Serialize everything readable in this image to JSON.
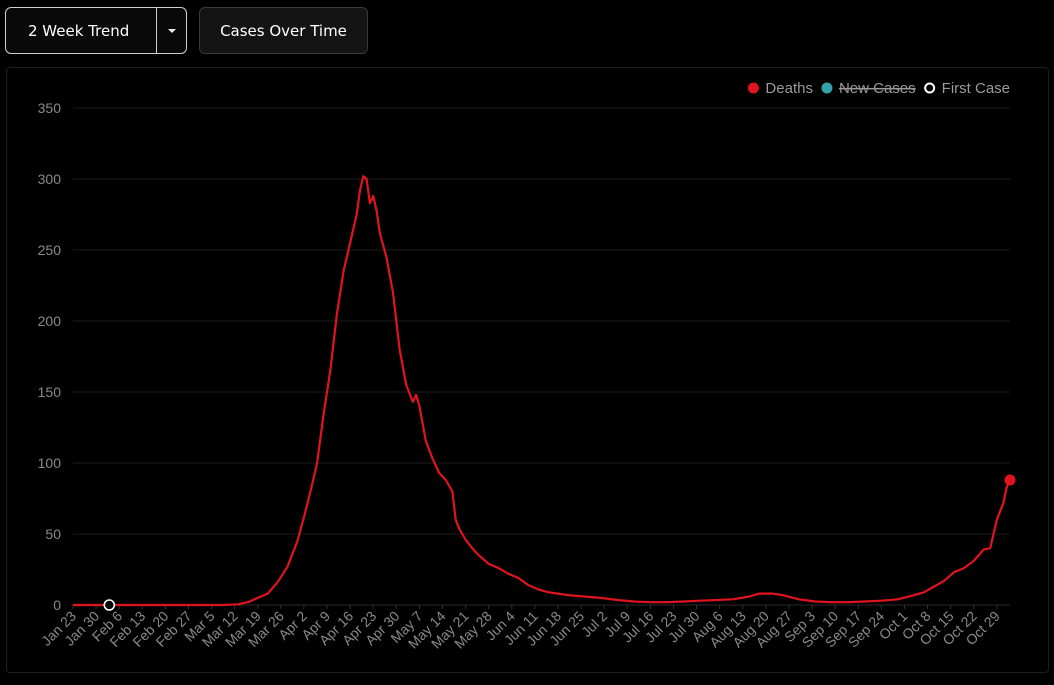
{
  "toolbar": {
    "trend_label": "2 Week Trend",
    "cases_label": "Cases Over Time"
  },
  "colors": {
    "deaths": "#e0141e",
    "new_cases": "#2fa3a8",
    "first_case": "#ffffff"
  },
  "chart_data": {
    "type": "line",
    "ylim": [
      0,
      350
    ],
    "yticks": [
      0,
      50,
      100,
      150,
      200,
      250,
      300,
      350
    ],
    "grid": true,
    "legend_position": "top-right",
    "legend": [
      {
        "name": "Deaths",
        "marker": "filled",
        "color": "#e0141e",
        "hidden": false
      },
      {
        "name": "New Cases",
        "marker": "filled",
        "color": "#2fa3a8",
        "hidden": true
      },
      {
        "name": "First Case",
        "marker": "hollow",
        "color": "#ffffff",
        "hidden": false
      }
    ],
    "x_labels": [
      "Jan 23",
      "Jan 30",
      "Feb 6",
      "Feb 13",
      "Feb 20",
      "Feb 27",
      "Mar 5",
      "Mar 12",
      "Mar 19",
      "Mar 26",
      "Apr 2",
      "Apr 9",
      "Apr 16",
      "Apr 23",
      "Apr 30",
      "May 7",
      "May 14",
      "May 21",
      "May 28",
      "Jun 4",
      "Jun 11",
      "Jun 18",
      "Jun 25",
      "Jul 2",
      "Jul 9",
      "Jul 16",
      "Jul 23",
      "Jul 30",
      "Aug 6",
      "Aug 13",
      "Aug 20",
      "Aug 27",
      "Sep 3",
      "Sep 10",
      "Sep 17",
      "Sep 24",
      "Oct 1",
      "Oct 8",
      "Oct 15",
      "Oct 22",
      "Oct 29"
    ],
    "series": [
      {
        "name": "Deaths",
        "points": [
          [
            0,
            0
          ],
          [
            5,
            0
          ],
          [
            10,
            0
          ],
          [
            15,
            0
          ],
          [
            20,
            0
          ],
          [
            25,
            0
          ],
          [
            30,
            0
          ],
          [
            35,
            0
          ],
          [
            40,
            0
          ],
          [
            45,
            0
          ],
          [
            50,
            0.5
          ],
          [
            53,
            2
          ],
          [
            56,
            5
          ],
          [
            59,
            8
          ],
          [
            62,
            16
          ],
          [
            65,
            27
          ],
          [
            68,
            45
          ],
          [
            70,
            62
          ],
          [
            72,
            80
          ],
          [
            74,
            100
          ],
          [
            76,
            135
          ],
          [
            78,
            165
          ],
          [
            80,
            205
          ],
          [
            82,
            235
          ],
          [
            84,
            255
          ],
          [
            86,
            275
          ],
          [
            87,
            292
          ],
          [
            88,
            302
          ],
          [
            89,
            300
          ],
          [
            90,
            283
          ],
          [
            91,
            288
          ],
          [
            92,
            278
          ],
          [
            93,
            262
          ],
          [
            95,
            245
          ],
          [
            97,
            220
          ],
          [
            99,
            180
          ],
          [
            101,
            155
          ],
          [
            103,
            143
          ],
          [
            104,
            148
          ],
          [
            105,
            140
          ],
          [
            107,
            115
          ],
          [
            109,
            103
          ],
          [
            111,
            93
          ],
          [
            113,
            88
          ],
          [
            115,
            80
          ],
          [
            116,
            60
          ],
          [
            117,
            54
          ],
          [
            119,
            46
          ],
          [
            121,
            40
          ],
          [
            123,
            35
          ],
          [
            126,
            29
          ],
          [
            129,
            26
          ],
          [
            132,
            22
          ],
          [
            135,
            19
          ],
          [
            138,
            14
          ],
          [
            141,
            11
          ],
          [
            144,
            9
          ],
          [
            147,
            8
          ],
          [
            150,
            7
          ],
          [
            155,
            6
          ],
          [
            160,
            5
          ],
          [
            165,
            3.5
          ],
          [
            170,
            2.5
          ],
          [
            175,
            2
          ],
          [
            180,
            2
          ],
          [
            185,
            2.5
          ],
          [
            190,
            3
          ],
          [
            195,
            3.5
          ],
          [
            200,
            4
          ],
          [
            205,
            6
          ],
          [
            208,
            8
          ],
          [
            212,
            8
          ],
          [
            215,
            7
          ],
          [
            220,
            4
          ],
          [
            225,
            2.5
          ],
          [
            230,
            2
          ],
          [
            235,
            2
          ],
          [
            240,
            2.5
          ],
          [
            245,
            3
          ],
          [
            250,
            4
          ],
          [
            255,
            7
          ],
          [
            258,
            9
          ],
          [
            261,
            13
          ],
          [
            264,
            17
          ],
          [
            267,
            23
          ],
          [
            270,
            26
          ],
          [
            273,
            31
          ],
          [
            276,
            39
          ],
          [
            278,
            40
          ],
          [
            280,
            60
          ],
          [
            282,
            72
          ],
          [
            283,
            83
          ],
          [
            284,
            88
          ]
        ],
        "end_value": 88
      }
    ],
    "first_case": {
      "x": "Feb 6",
      "day": 11,
      "value": 0
    }
  }
}
